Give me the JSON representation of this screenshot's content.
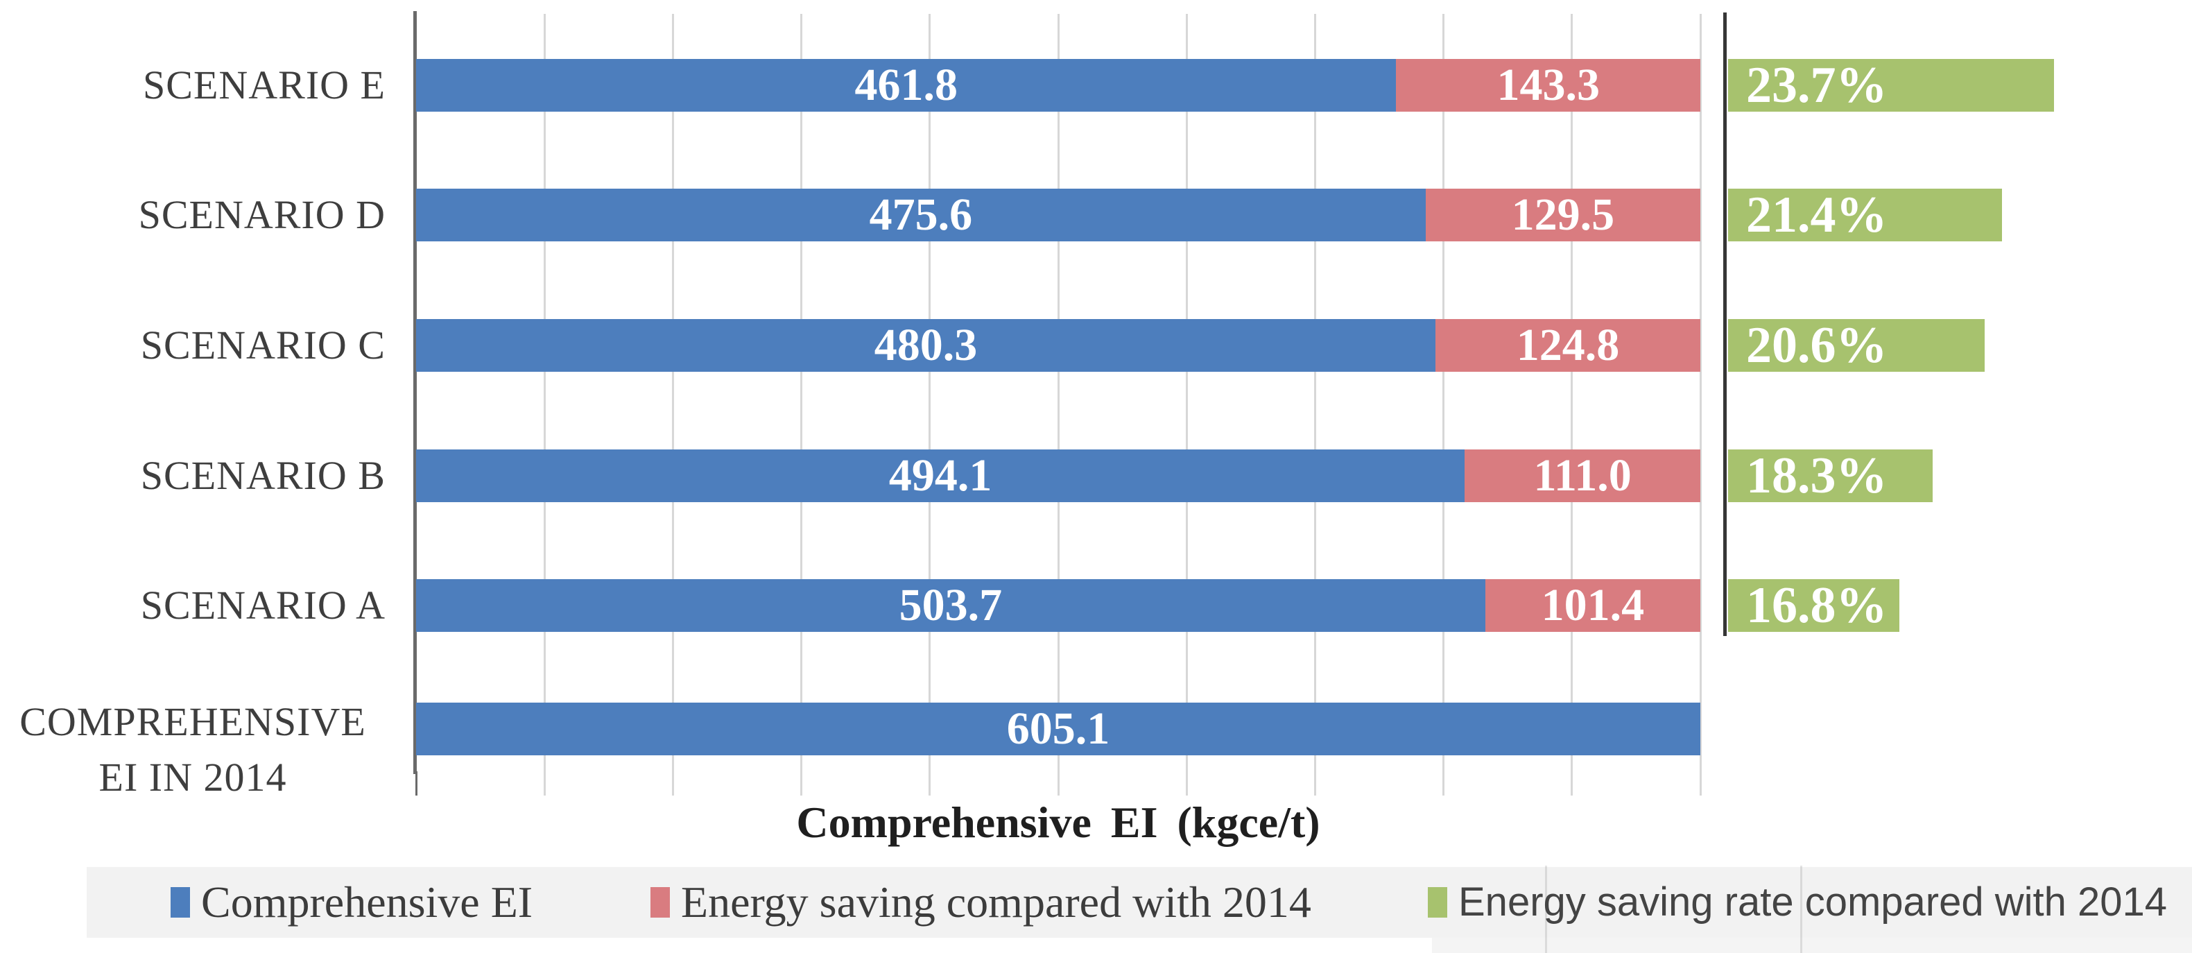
{
  "chart_data": {
    "type": "bar",
    "orientation": "horizontal",
    "stacked": true,
    "xlabel": "Comprehensive EI  (kgce/t)",
    "categories": [
      "SCENARIO E",
      "SCENARIO D",
      "SCENARIO C",
      "SCENARIO B",
      "SCENARIO A",
      "COMPREHENSIVE EI IN 2014"
    ],
    "category_display_lines": [
      [
        "SCENARIO E"
      ],
      [
        "SCENARIO D"
      ],
      [
        "SCENARIO C"
      ],
      [
        "SCENARIO B"
      ],
      [
        "SCENARIO A"
      ],
      [
        "COMPREHENSIVE",
        "EI IN 2014"
      ]
    ],
    "series": [
      {
        "name": "Comprehensive EI",
        "axis": "primary",
        "color": "#4d7ebd",
        "values": [
          461.8,
          475.6,
          480.3,
          494.1,
          503.7,
          605.1
        ],
        "data_labels": [
          "461.8",
          "475.6",
          "480.3",
          "494.1",
          "503.7",
          "605.1"
        ]
      },
      {
        "name": "Energy saving compared with 2014",
        "axis": "primary",
        "color": "#d97c80",
        "values": [
          143.3,
          129.5,
          124.8,
          111.0,
          101.4,
          null
        ],
        "data_labels": [
          "143.3",
          "129.5",
          "124.8",
          "111.0",
          "101.4",
          null
        ]
      },
      {
        "name": "Energy saving rate compared with 2014",
        "axis": "secondary",
        "unit": "%",
        "color": "#a7c26e",
        "values": [
          23.7,
          21.4,
          20.6,
          18.3,
          16.8,
          null
        ],
        "data_labels": [
          "23.7%",
          "21.4%",
          "20.6%",
          "18.3%",
          "16.8%",
          null
        ]
      }
    ],
    "primary_axis": {
      "min": 0,
      "max": 605.1,
      "gridline_divisions": 10,
      "tick_labels_visible": false,
      "gridlines": true
    },
    "secondary_axis": {
      "line_visible": true,
      "tick_labels_visible": false,
      "est_range_percent": [
        9.2,
        25.2
      ]
    },
    "legend_position": "bottom"
  },
  "legend": {
    "background_color": "#f2f2f2",
    "items": [
      {
        "label": "Comprehensive EI",
        "color": "#4d7ebd"
      },
      {
        "label": "Energy saving compared with 2014",
        "color": "#d97c80"
      },
      {
        "label": "Energy saving rate compared with 2014",
        "color": "#a7c26e"
      }
    ]
  },
  "colors": {
    "gridline": "#d7d7d7",
    "primary_axis_line": "#6a6a6a",
    "secondary_axis_line": "#363636",
    "data_label_text": "#ffffff",
    "category_text": "#3e3e3e"
  }
}
